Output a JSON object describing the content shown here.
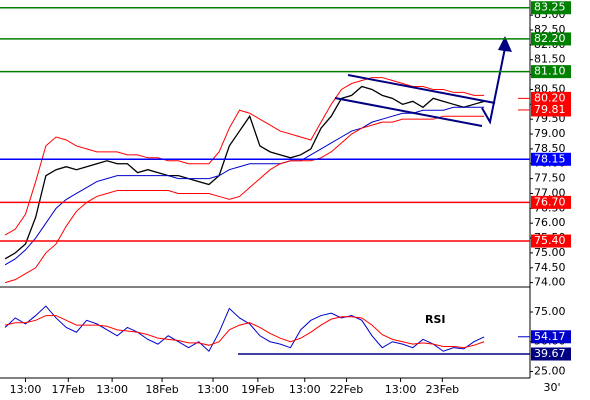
{
  "chart_data": [
    {
      "type": "line",
      "xlim": [
        -0.5,
        51.5
      ],
      "ylim": [
        73.92,
        83.51
      ],
      "yticks": [
        {
          "value": 74,
          "label": "74.00"
        },
        {
          "value": 74.5,
          "label": "74.50"
        },
        {
          "value": 75,
          "label": "75.00"
        },
        {
          "value": 75.5,
          "label": "75.50"
        },
        {
          "value": 76,
          "label": "76.00"
        },
        {
          "value": 76.5,
          "label": "76.50"
        },
        {
          "value": 77,
          "label": "77.00"
        },
        {
          "value": 77.5,
          "label": "77.50"
        },
        {
          "value": 78,
          "label": "78.00"
        },
        {
          "value": 78.5,
          "label": "78.50"
        },
        {
          "value": 79,
          "label": "79.00"
        },
        {
          "value": 79.5,
          "label": "79.50"
        },
        {
          "value": 80,
          "label": "80.00"
        },
        {
          "value": 80.5,
          "label": "80.50"
        },
        {
          "value": 81,
          "label": "81.00"
        },
        {
          "value": 81.5,
          "label": "81.50"
        },
        {
          "value": 82,
          "label": "82.00"
        },
        {
          "value": 82.5,
          "label": "82.50"
        },
        {
          "value": 83,
          "label": "83.00"
        }
      ],
      "series": [
        {
          "color": "#000000",
          "values": [
            74.8,
            75.0,
            75.3,
            76.2,
            77.6,
            77.8,
            77.9,
            77.8,
            77.9,
            78.0,
            78.1,
            78.0,
            78.0,
            77.7,
            77.8,
            77.7,
            77.6,
            77.6,
            77.5,
            77.4,
            77.3,
            77.6,
            78.6,
            79.1,
            79.6,
            78.6,
            78.4,
            78.3,
            78.2,
            78.3,
            78.5,
            79.2,
            79.6,
            80.2,
            80.3,
            80.6,
            80.5,
            80.3,
            80.2,
            80.0,
            80.1,
            79.9,
            80.2,
            80.1,
            80.0,
            79.9,
            80.0,
            80.1
          ]
        },
        {
          "color": "#0000cc",
          "values": [
            74.6,
            74.8,
            75.1,
            75.5,
            76.0,
            76.5,
            76.8,
            77.0,
            77.2,
            77.4,
            77.5,
            77.6,
            77.6,
            77.6,
            77.6,
            77.6,
            77.6,
            77.5,
            77.5,
            77.5,
            77.5,
            77.6,
            77.8,
            77.9,
            78.0,
            78.0,
            78.0,
            78.0,
            78.1,
            78.1,
            78.3,
            78.5,
            78.7,
            78.9,
            79.1,
            79.2,
            79.4,
            79.5,
            79.6,
            79.7,
            79.7,
            79.8,
            79.8,
            79.8,
            79.9,
            79.9,
            79.9,
            79.9
          ]
        },
        {
          "color": "#ff0000",
          "values": [
            75.6,
            75.8,
            76.3,
            77.4,
            78.6,
            78.9,
            78.8,
            78.6,
            78.5,
            78.4,
            78.4,
            78.4,
            78.3,
            78.3,
            78.2,
            78.2,
            78.1,
            78.1,
            78.0,
            78.0,
            78.0,
            78.4,
            79.2,
            79.8,
            79.7,
            79.5,
            79.3,
            79.1,
            79.0,
            78.9,
            78.8,
            79.4,
            80.0,
            80.5,
            80.7,
            80.8,
            80.9,
            80.9,
            80.8,
            80.7,
            80.6,
            80.6,
            80.5,
            80.5,
            80.4,
            80.4,
            80.3,
            80.3
          ]
        },
        {
          "color": "#ff0000",
          "values": [
            74.0,
            74.1,
            74.3,
            74.5,
            75.0,
            75.3,
            75.9,
            76.4,
            76.7,
            76.9,
            77.0,
            77.1,
            77.1,
            77.1,
            77.1,
            77.1,
            77.1,
            77.0,
            77.0,
            77.0,
            77.0,
            76.9,
            76.8,
            76.9,
            77.2,
            77.5,
            77.8,
            78.0,
            78.1,
            78.1,
            78.1,
            78.2,
            78.4,
            78.7,
            79.0,
            79.2,
            79.3,
            79.4,
            79.4,
            79.5,
            79.5,
            79.5,
            79.5,
            79.6,
            79.6,
            79.6,
            79.6,
            79.6
          ]
        }
      ],
      "levels": [
        {
          "value": 83.25,
          "label": "83.25",
          "color": "#008000"
        },
        {
          "value": 82.2,
          "label": "82.20",
          "color": "#008000"
        },
        {
          "value": 81.1,
          "label": "81.10",
          "color": "#008000"
        },
        {
          "value": 78.15,
          "label": "78.15",
          "color": "#0000ff"
        },
        {
          "value": 76.7,
          "label": "76.70",
          "color": "#ff0000"
        },
        {
          "value": 75.4,
          "label": "75.40",
          "color": "#ff0000"
        }
      ],
      "markers": [
        {
          "value": 80.2,
          "label": "80.20",
          "color": "#ff0000"
        },
        {
          "value": 79.81,
          "label": "79.81",
          "color": "#ff0000"
        }
      ]
    },
    {
      "type": "line",
      "title": "RSI",
      "xlim": [
        -0.5,
        51.5
      ],
      "ylim": [
        19.5,
        93.5
      ],
      "yticks": [
        {
          "value": 25,
          "label": "25.00"
        },
        {
          "value": 50,
          "label": "50.00"
        },
        {
          "value": 75,
          "label": "75.00"
        }
      ],
      "xticks": [
        {
          "value": 2,
          "label": "13:00"
        },
        {
          "value": 6.2,
          "label": "17Feb"
        },
        {
          "value": 10.5,
          "label": "13:00"
        },
        {
          "value": 15.4,
          "label": "18Feb"
        },
        {
          "value": 20.4,
          "label": "13:00"
        },
        {
          "value": 24.8,
          "label": "19Feb"
        },
        {
          "value": 29.4,
          "label": "13:00"
        },
        {
          "value": 33.5,
          "label": "22Feb"
        },
        {
          "value": 38.8,
          "label": "13:00"
        },
        {
          "value": 42.9,
          "label": "23Feb"
        }
      ],
      "timeframe": "30'",
      "series": [
        {
          "color": "#0000cc",
          "values": [
            62,
            70,
            65,
            72,
            80,
            70,
            62,
            58,
            68,
            65,
            60,
            55,
            62,
            58,
            52,
            48,
            55,
            50,
            45,
            50,
            42,
            58,
            78,
            70,
            65,
            55,
            50,
            48,
            45,
            60,
            68,
            72,
            74,
            70,
            72,
            68,
            55,
            45,
            50,
            48,
            45,
            52,
            48,
            42,
            45,
            44,
            50,
            54
          ]
        },
        {
          "color": "#ff0000",
          "values": [
            64,
            66,
            66,
            68,
            72,
            72,
            68,
            64,
            64,
            64,
            63,
            60,
            59,
            58,
            56,
            53,
            52,
            51,
            49,
            49,
            47,
            50,
            60,
            64,
            66,
            62,
            57,
            53,
            50,
            53,
            58,
            64,
            69,
            71,
            71,
            70,
            64,
            56,
            52,
            50,
            48,
            49,
            48,
            46,
            46,
            45,
            47,
            50
          ]
        }
      ],
      "levels": [
        {
          "value": 39.67,
          "label": "39.67",
          "color": "#000080"
        }
      ],
      "markers": [
        {
          "value": 54.17,
          "label": "54.17",
          "color": "#0000cc"
        }
      ]
    }
  ]
}
